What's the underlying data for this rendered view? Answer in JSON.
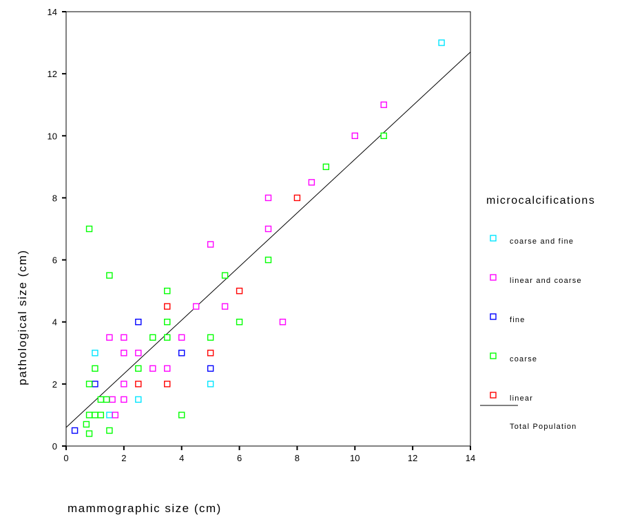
{
  "chart_data": {
    "type": "scatter",
    "title": "",
    "xlabel": "mammographic size (cm)",
    "ylabel": "pathological size (cm)",
    "xlim": [
      0,
      14
    ],
    "ylim": [
      0,
      14
    ],
    "xticks": [
      "0",
      "2",
      "4",
      "6",
      "8",
      "10",
      "12",
      "14"
    ],
    "yticks": [
      "0",
      "2",
      "4",
      "6",
      "8",
      "10",
      "12",
      "14"
    ],
    "grid": false,
    "legend_title": "microcalcifications",
    "legend_position": "right",
    "series": [
      {
        "name": "coarse and fine",
        "color": "#00e5ff",
        "points": [
          [
            13,
            13
          ],
          [
            1.0,
            3.0
          ],
          [
            1.5,
            1.0
          ],
          [
            2.5,
            1.5
          ],
          [
            5.0,
            2.0
          ]
        ]
      },
      {
        "name": "linear and coarse",
        "color": "#ff00ff",
        "points": [
          [
            11,
            11
          ],
          [
            10,
            10
          ],
          [
            8.5,
            8.5
          ],
          [
            7.0,
            8.0
          ],
          [
            7.0,
            7.0
          ],
          [
            5.0,
            6.5
          ],
          [
            4.5,
            4.5
          ],
          [
            5.5,
            4.5
          ],
          [
            7.5,
            4.0
          ],
          [
            1.5,
            3.5
          ],
          [
            2.0,
            3.5
          ],
          [
            4.0,
            3.5
          ],
          [
            2.0,
            3.0
          ],
          [
            2.5,
            3.0
          ],
          [
            3.0,
            2.5
          ],
          [
            3.5,
            2.5
          ],
          [
            2.0,
            2.0
          ],
          [
            2.0,
            1.5
          ],
          [
            1.7,
            1.0
          ],
          [
            1.6,
            1.5
          ]
        ]
      },
      {
        "name": "fine",
        "color": "#0000ff",
        "points": [
          [
            2.5,
            4.0
          ],
          [
            4.0,
            3.0
          ],
          [
            5.0,
            2.5
          ],
          [
            1.0,
            2.0
          ],
          [
            0.3,
            0.5
          ]
        ]
      },
      {
        "name": "coarse",
        "color": "#00ff00",
        "points": [
          [
            11,
            10
          ],
          [
            9.0,
            9.0
          ],
          [
            7.0,
            6.0
          ],
          [
            5.5,
            5.5
          ],
          [
            0.8,
            7.0
          ],
          [
            1.5,
            5.5
          ],
          [
            3.5,
            5.0
          ],
          [
            3.5,
            4.0
          ],
          [
            6.0,
            4.0
          ],
          [
            3.0,
            3.5
          ],
          [
            3.5,
            3.5
          ],
          [
            5.0,
            3.5
          ],
          [
            1.0,
            2.5
          ],
          [
            2.5,
            2.5
          ],
          [
            0.8,
            2.0
          ],
          [
            1.2,
            1.5
          ],
          [
            1.4,
            1.5
          ],
          [
            0.8,
            1.0
          ],
          [
            1.0,
            1.0
          ],
          [
            1.2,
            1.0
          ],
          [
            4.0,
            1.0
          ],
          [
            0.7,
            0.7
          ],
          [
            0.8,
            0.4
          ],
          [
            1.5,
            0.5
          ]
        ]
      },
      {
        "name": "linear",
        "color": "#ff0000",
        "points": [
          [
            8.0,
            8.0
          ],
          [
            6.0,
            5.0
          ],
          [
            3.5,
            4.5
          ],
          [
            5.0,
            3.0
          ],
          [
            2.5,
            2.0
          ],
          [
            3.5,
            2.0
          ]
        ]
      }
    ],
    "fit_line": {
      "name": "Total Population",
      "color": "#000000",
      "start": [
        0,
        0.6
      ],
      "end": [
        14,
        12.7
      ]
    }
  }
}
